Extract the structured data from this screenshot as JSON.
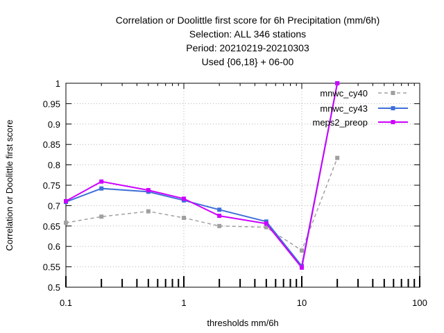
{
  "chart_data": {
    "type": "line",
    "title_lines": [
      "Correlation or Doolittle first score  for 6h Precipitation (mm/6h)",
      "Selection: ALL    346 stations",
      "Period: 20210219-20210303",
      "Used {06,18} + 06-00"
    ],
    "xlabel": "thresholds mm/6h",
    "ylabel": "Correlation or Doolittle first score",
    "x_scale": "log",
    "xlim": [
      0.1,
      100
    ],
    "ylim": [
      0.5,
      1.0
    ],
    "x_ticks": [
      0.1,
      1,
      10,
      100
    ],
    "x_tick_labels": [
      "0.1",
      "1",
      "10",
      "100"
    ],
    "y_ticks": [
      0.5,
      0.55,
      0.6,
      0.65,
      0.7,
      0.75,
      0.8,
      0.85,
      0.9,
      0.95,
      1.0
    ],
    "y_tick_labels": [
      "0.5",
      "0.55",
      "0.6",
      "0.65",
      "0.7",
      "0.75",
      "0.8",
      "0.85",
      "0.9",
      "0.95",
      "1"
    ],
    "grid": true,
    "legend_position": "top-right",
    "x": [
      0.1,
      0.2,
      0.5,
      1,
      2,
      5,
      10,
      20
    ],
    "series": [
      {
        "name": "mnwc_cy40",
        "color": "#a0a0a0",
        "dashed": true,
        "values": [
          0.658,
          0.673,
          0.686,
          0.67,
          0.65,
          0.647,
          0.59,
          0.817
        ]
      },
      {
        "name": "mnwc_cy43",
        "color": "#3f6fd8",
        "dashed": false,
        "values": [
          0.709,
          0.742,
          0.734,
          0.713,
          0.69,
          0.661,
          0.552,
          1.0
        ]
      },
      {
        "name": "meps2_preop",
        "color": "#cc00ff",
        "dashed": false,
        "values": [
          0.711,
          0.759,
          0.738,
          0.717,
          0.675,
          0.656,
          0.548,
          1.0
        ]
      }
    ]
  }
}
